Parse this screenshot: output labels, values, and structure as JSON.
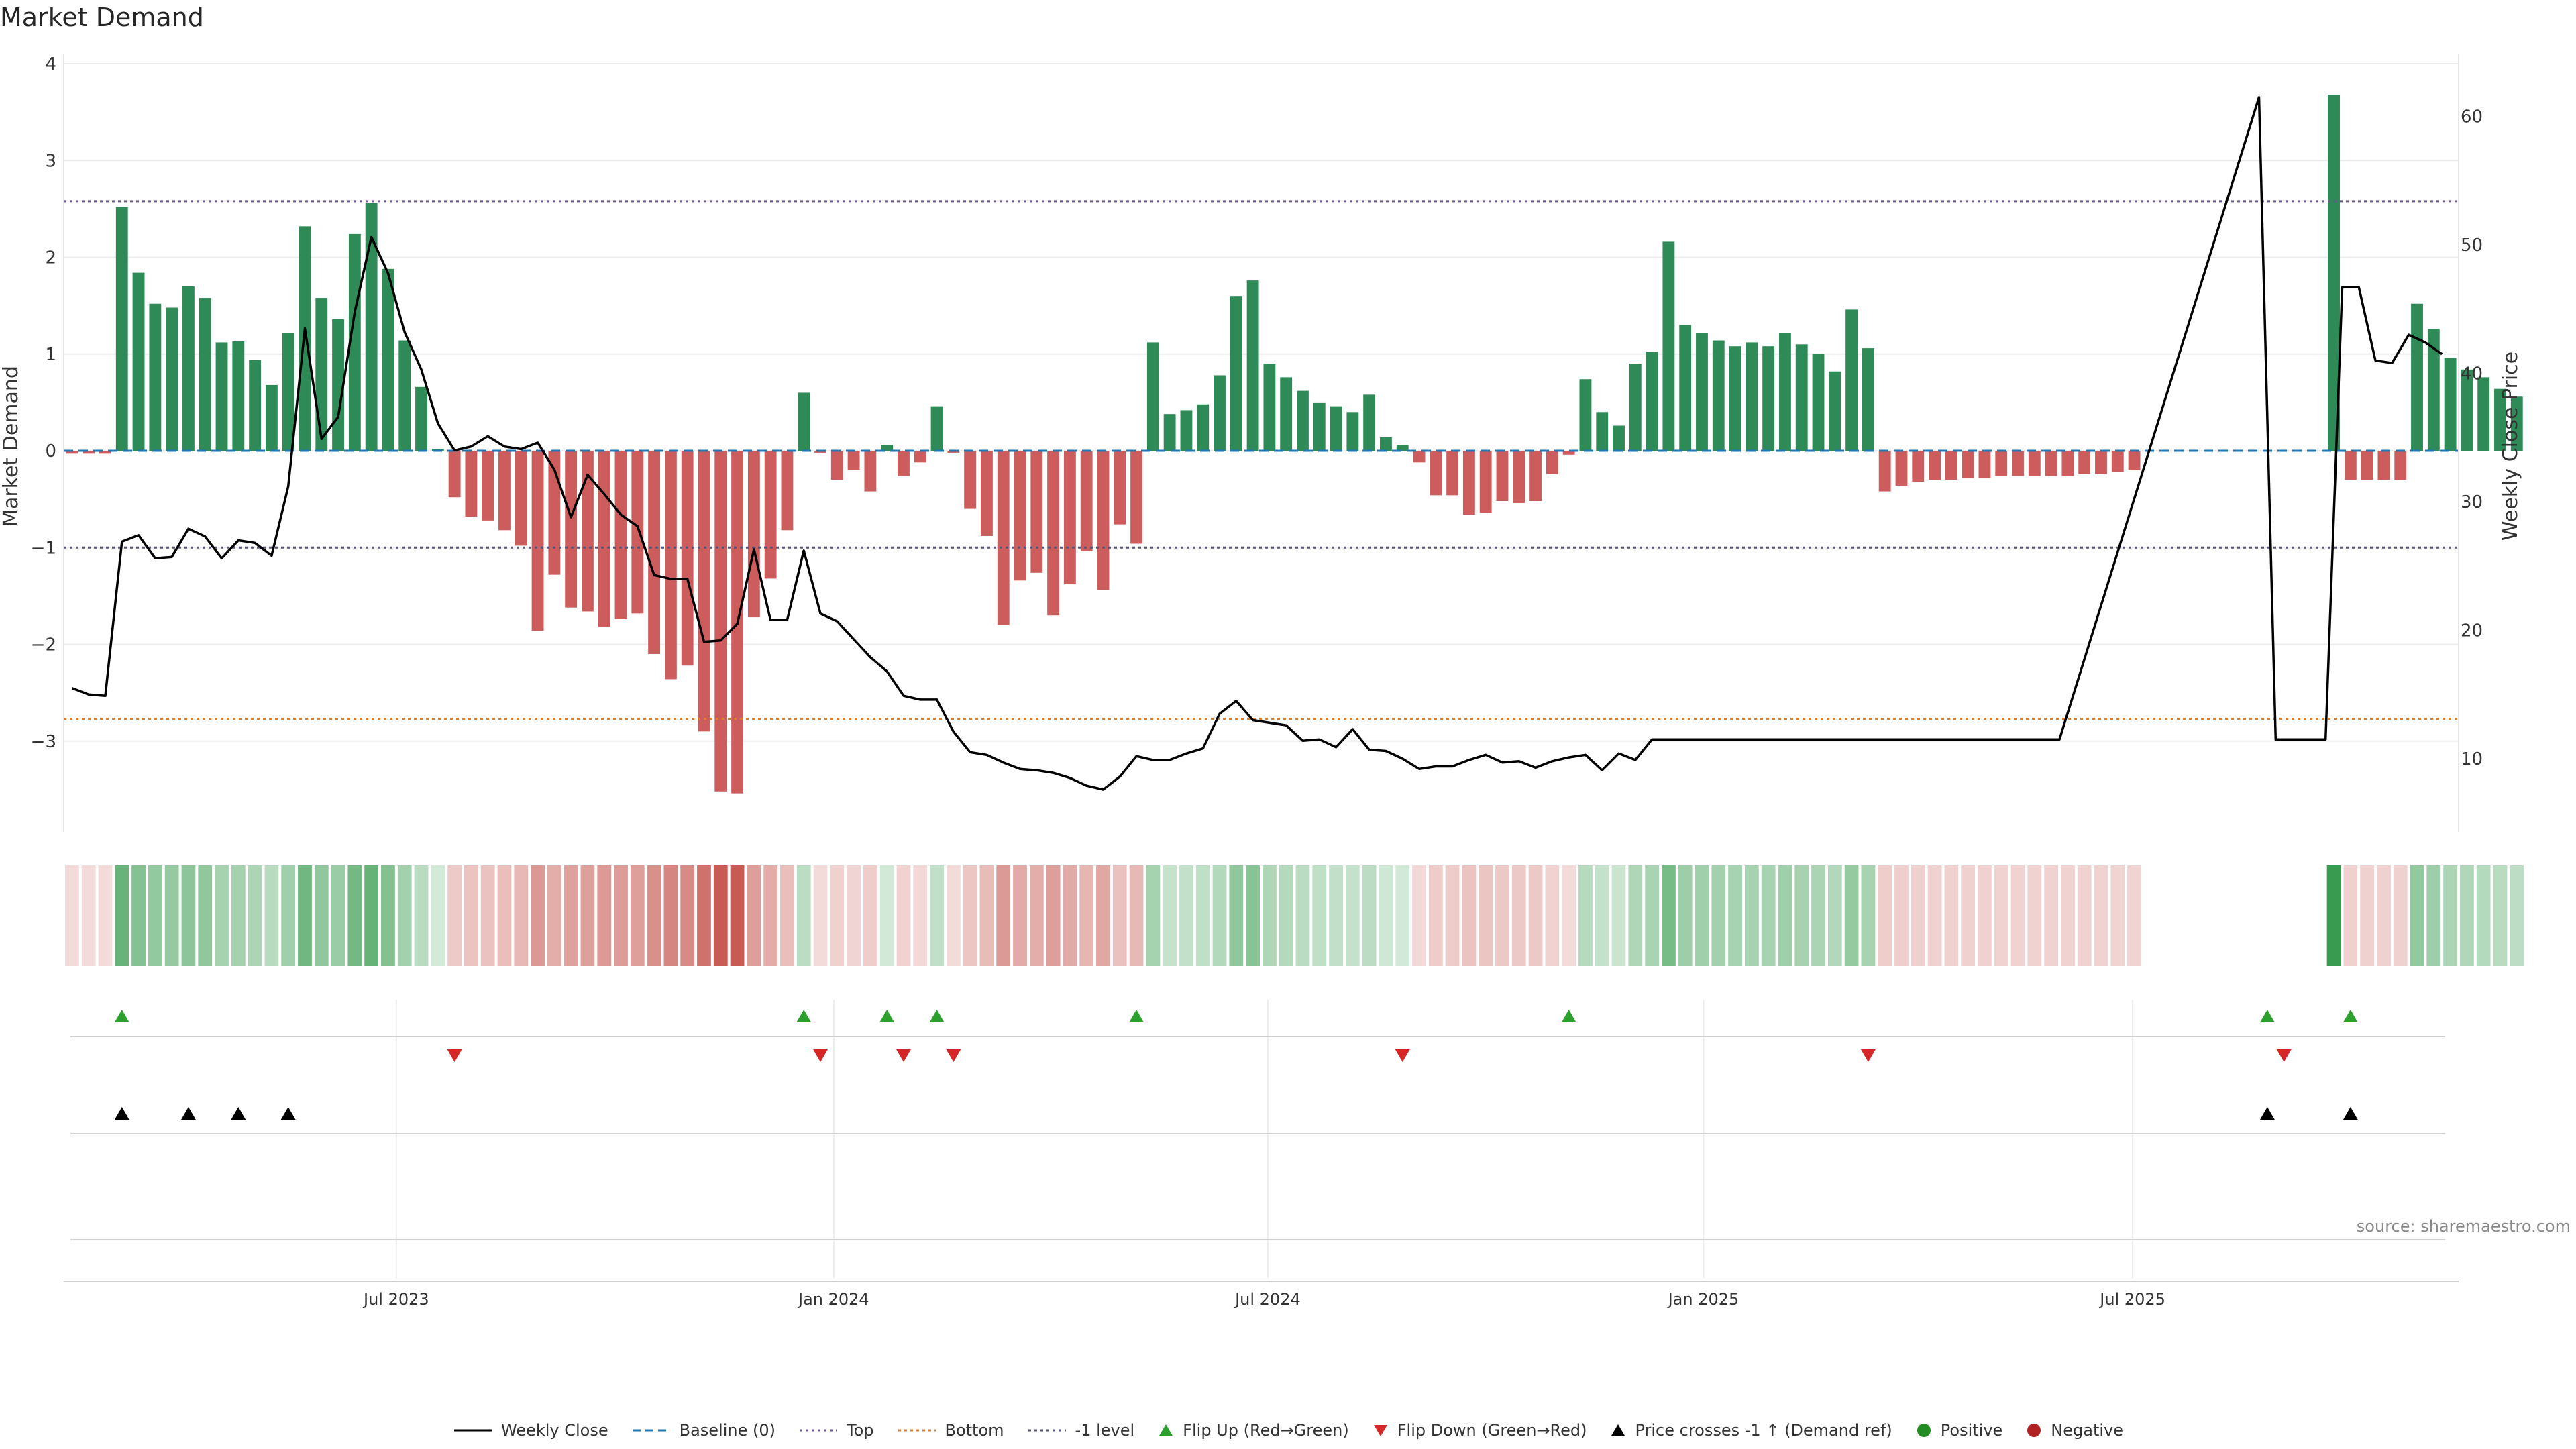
{
  "title": "Market Demand",
  "source": "source: sharemaestro.com",
  "colors": {
    "positive": "#2e8b57",
    "negative": "#cd5c5c",
    "price": "#000000",
    "baseline": "#1f77b4",
    "top": "#6a5a8a",
    "bottom": "#e07b2a",
    "minus_one": "#555577",
    "flip_up": "#2ca02c",
    "flip_down": "#d62728"
  },
  "chart_data": {
    "type": "bar",
    "title": "Market Demand",
    "ylabel": "Market Demand",
    "y2label": "Weekly Close Price",
    "ylim": [
      -3.95,
      4.05
    ],
    "y2lim": [
      4.5,
      64.5
    ],
    "y_ticks": [
      "4",
      "3",
      "2",
      "1",
      "0",
      "−1",
      "−2",
      "−3"
    ],
    "y_tick_values": [
      4,
      3,
      2,
      1,
      0,
      -1,
      -2,
      -3
    ],
    "y2_ticks": [
      "60",
      "50",
      "40",
      "30",
      "20",
      "10"
    ],
    "y2_tick_values": [
      60,
      50,
      40,
      30,
      20,
      10
    ],
    "x_tick_labels": [
      "Jul 2023",
      "Jan 2024",
      "Jul 2024",
      "Jan 2025",
      "Jul 2025"
    ],
    "x_tick_weeks": [
      20,
      46.3,
      72.4,
      98.6,
      124.4
    ],
    "reference_lines": {
      "top": 2.58,
      "bottom": -2.77,
      "minus_one": -1.0,
      "baseline": 0
    },
    "series": [
      {
        "name": "Market Demand",
        "values": [
          -0.03,
          -0.03,
          -0.03,
          2.52,
          1.84,
          1.52,
          1.48,
          1.7,
          1.58,
          1.12,
          1.13,
          0.94,
          0.68,
          1.22,
          2.32,
          1.58,
          1.36,
          2.24,
          2.56,
          1.88,
          1.14,
          0.66,
          0.02,
          -0.48,
          -0.68,
          -0.72,
          -0.82,
          -0.98,
          -1.86,
          -1.28,
          -1.62,
          -1.66,
          -1.82,
          -1.74,
          -1.68,
          -2.1,
          -2.36,
          -2.22,
          -2.9,
          -3.52,
          -3.54,
          -1.72,
          -1.32,
          -0.82,
          0.6,
          -0.02,
          -0.3,
          -0.2,
          -0.42,
          0.06,
          -0.26,
          -0.12,
          0.46,
          -0.02,
          -0.6,
          -0.88,
          -1.8,
          -1.34,
          -1.26,
          -1.7,
          -1.38,
          -1.04,
          -1.44,
          -0.76,
          -0.96,
          1.12,
          0.38,
          0.42,
          0.48,
          0.78,
          1.6,
          1.76,
          0.9,
          0.76,
          0.62,
          0.5,
          0.46,
          0.4,
          0.58,
          0.14,
          0.06,
          -0.12,
          -0.46,
          -0.46,
          -0.66,
          -0.64,
          -0.52,
          -0.54,
          -0.52,
          -0.24,
          -0.04,
          0.74,
          0.4,
          0.26,
          0.9,
          1.02,
          2.16,
          1.3,
          1.22,
          1.14,
          1.08,
          1.12,
          1.08,
          1.22,
          1.1,
          1.0,
          0.82,
          1.46,
          1.06,
          -0.42,
          -0.36,
          -0.32,
          -0.3,
          -0.3,
          -0.28,
          -0.28,
          -0.26,
          -0.26,
          -0.26,
          -0.26,
          -0.26,
          -0.24,
          -0.24,
          -0.22,
          -0.2,
          null,
          null,
          null,
          null,
          null,
          null,
          null,
          null,
          null,
          null,
          null,
          3.68,
          -0.3,
          -0.3,
          -0.3,
          -0.3,
          1.52,
          1.26,
          0.96,
          0.84,
          0.76,
          0.64,
          0.56
        ]
      },
      {
        "name": "Weekly Close",
        "points": [
          [
            0,
            15.5
          ],
          [
            1,
            15
          ],
          [
            2,
            14.9
          ],
          [
            3,
            26.9
          ],
          [
            4,
            27.4
          ],
          [
            5,
            25.6
          ],
          [
            6,
            25.7
          ],
          [
            7,
            27.9
          ],
          [
            8,
            27.3
          ],
          [
            9,
            25.6
          ],
          [
            10,
            27
          ],
          [
            11,
            26.8
          ],
          [
            12,
            25.8
          ],
          [
            13,
            31.2
          ],
          [
            14,
            43.5
          ],
          [
            15,
            34.9
          ],
          [
            16,
            36.6
          ],
          [
            17,
            44.8
          ],
          [
            18,
            50.6
          ],
          [
            19,
            47.8
          ],
          [
            20,
            43.2
          ],
          [
            21,
            40.3
          ],
          [
            22,
            36.1
          ],
          [
            23,
            34
          ],
          [
            24,
            34.3
          ],
          [
            25,
            35.1
          ],
          [
            26,
            34.3
          ],
          [
            27,
            34.1
          ],
          [
            28,
            34.6
          ],
          [
            29,
            32.5
          ],
          [
            30,
            28.8
          ],
          [
            31,
            32.1
          ],
          [
            32,
            30.6
          ],
          [
            33,
            29
          ],
          [
            34,
            28.1
          ],
          [
            35,
            24.3
          ],
          [
            36,
            24
          ],
          [
            37,
            24
          ],
          [
            38,
            19.1
          ],
          [
            39,
            19.2
          ],
          [
            40,
            20.5
          ],
          [
            41,
            26.3
          ],
          [
            42,
            20.8
          ],
          [
            43,
            20.8
          ],
          [
            44,
            26.2
          ],
          [
            45,
            21.3
          ],
          [
            46,
            20.7
          ],
          [
            47,
            19.3
          ],
          [
            48,
            17.9
          ],
          [
            49,
            16.8
          ],
          [
            50,
            14.9
          ],
          [
            51,
            14.6
          ],
          [
            52,
            14.6
          ],
          [
            53,
            12.1
          ],
          [
            54,
            10.5
          ],
          [
            55,
            10.3
          ],
          [
            56,
            9.7
          ],
          [
            57,
            9.2
          ],
          [
            58,
            9.1
          ],
          [
            59,
            8.9
          ],
          [
            60,
            8.5
          ],
          [
            61,
            7.9
          ],
          [
            62,
            7.6
          ],
          [
            63,
            8.6
          ],
          [
            64,
            10.2
          ],
          [
            65,
            9.9
          ],
          [
            66,
            9.9
          ],
          [
            67,
            10.4
          ],
          [
            68,
            10.8
          ],
          [
            69,
            13.5
          ],
          [
            70,
            14.5
          ],
          [
            71,
            13
          ],
          [
            72,
            12.8
          ],
          [
            73,
            12.6
          ],
          [
            74,
            11.4
          ],
          [
            75,
            11.5
          ],
          [
            76,
            10.9
          ],
          [
            77,
            12.3
          ],
          [
            78,
            10.7
          ],
          [
            79,
            10.6
          ],
          [
            80,
            10
          ],
          [
            81,
            9.2
          ],
          [
            82,
            9.4
          ],
          [
            83,
            9.4
          ],
          [
            84,
            9.9
          ],
          [
            85,
            10.3
          ],
          [
            86,
            9.7
          ],
          [
            87,
            9.8
          ],
          [
            88,
            9.3
          ],
          [
            89,
            9.8
          ],
          [
            90,
            10.1
          ],
          [
            91,
            10.3
          ],
          [
            92,
            9.1
          ],
          [
            93,
            10.4
          ],
          [
            94,
            9.9
          ],
          [
            95,
            11.5
          ],
          [
            119.5,
            11.5
          ],
          [
            131.5,
            61.5
          ],
          [
            132.5,
            11.5
          ],
          [
            135.5,
            11.5
          ],
          [
            136.5,
            46.7
          ],
          [
            137.5,
            46.7
          ],
          [
            138.5,
            41
          ],
          [
            139.5,
            40.8
          ],
          [
            140.5,
            43
          ],
          [
            141.5,
            42.4
          ],
          [
            142.5,
            41.5
          ]
        ]
      }
    ],
    "heat_values": [
      -0.03,
      -0.03,
      -0.03,
      2.52,
      1.84,
      1.52,
      1.48,
      1.7,
      1.58,
      1.12,
      1.13,
      0.94,
      0.68,
      1.22,
      2.32,
      1.58,
      1.36,
      2.24,
      2.56,
      1.88,
      1.14,
      0.66,
      0.02,
      -0.48,
      -0.68,
      -0.72,
      -0.82,
      -0.98,
      -1.86,
      -1.28,
      -1.62,
      -1.66,
      -1.82,
      -1.74,
      -1.68,
      -2.1,
      -2.36,
      -2.22,
      -2.9,
      -3.52,
      -3.54,
      -1.72,
      -1.32,
      -0.82,
      0.6,
      -0.02,
      -0.3,
      -0.2,
      -0.42,
      0.06,
      -0.26,
      -0.12,
      0.46,
      -0.02,
      -0.6,
      -0.88,
      -1.8,
      -1.34,
      -1.26,
      -1.7,
      -1.38,
      -1.04,
      -1.44,
      -0.76,
      -0.96,
      1.12,
      0.38,
      0.42,
      0.48,
      0.78,
      1.6,
      1.76,
      0.9,
      0.76,
      0.62,
      0.5,
      0.46,
      0.4,
      0.58,
      0.14,
      0.06,
      -0.12,
      -0.46,
      -0.46,
      -0.66,
      -0.64,
      -0.52,
      -0.54,
      -0.52,
      -0.24,
      -0.04,
      0.74,
      0.4,
      0.26,
      0.9,
      1.02,
      2.16,
      1.3,
      1.22,
      1.14,
      1.08,
      1.12,
      1.08,
      1.22,
      1.1,
      1.0,
      0.82,
      1.46,
      1.06,
      -0.42,
      -0.36,
      -0.32,
      -0.3,
      -0.3,
      -0.28,
      -0.28,
      -0.26,
      -0.26,
      -0.26,
      -0.26,
      -0.26,
      -0.24,
      -0.24,
      -0.22,
      -0.2,
      null,
      null,
      null,
      null,
      null,
      null,
      null,
      null,
      null,
      null,
      null,
      3.68,
      -0.3,
      -0.3,
      -0.3,
      -0.3,
      1.52,
      1.26,
      0.96,
      0.84,
      0.76,
      0.64,
      0.56
    ],
    "flip_up_weeks": [
      3,
      44,
      49,
      52,
      64,
      90,
      132,
      137
    ],
    "flip_down_weeks": [
      23,
      45,
      50,
      53,
      80,
      108,
      133
    ],
    "price_cross_weeks": [
      3,
      7,
      10,
      13,
      132,
      137
    ]
  },
  "legend": [
    {
      "label": "Weekly Close",
      "kind": "line",
      "color": "#000000"
    },
    {
      "label": "Baseline (0)",
      "kind": "dash",
      "color": "#1f77b4"
    },
    {
      "label": "Top",
      "kind": "dot",
      "color": "#6a5a8a"
    },
    {
      "label": "Bottom",
      "kind": "dot",
      "color": "#e07b2a"
    },
    {
      "label": "-1 level",
      "kind": "dot",
      "color": "#555577"
    },
    {
      "label": "Flip Up (Red→Green)",
      "kind": "tri-up",
      "color": "#2ca02c"
    },
    {
      "label": "Flip Down (Green→Red)",
      "kind": "tri-down",
      "color": "#d62728"
    },
    {
      "label": "Price crosses -1 ↑ (Demand ref)",
      "kind": "tri-up",
      "color": "#000000"
    },
    {
      "label": "Positive",
      "kind": "circle",
      "color": "#228b22"
    },
    {
      "label": "Negative",
      "kind": "circle",
      "color": "#b22222"
    }
  ]
}
